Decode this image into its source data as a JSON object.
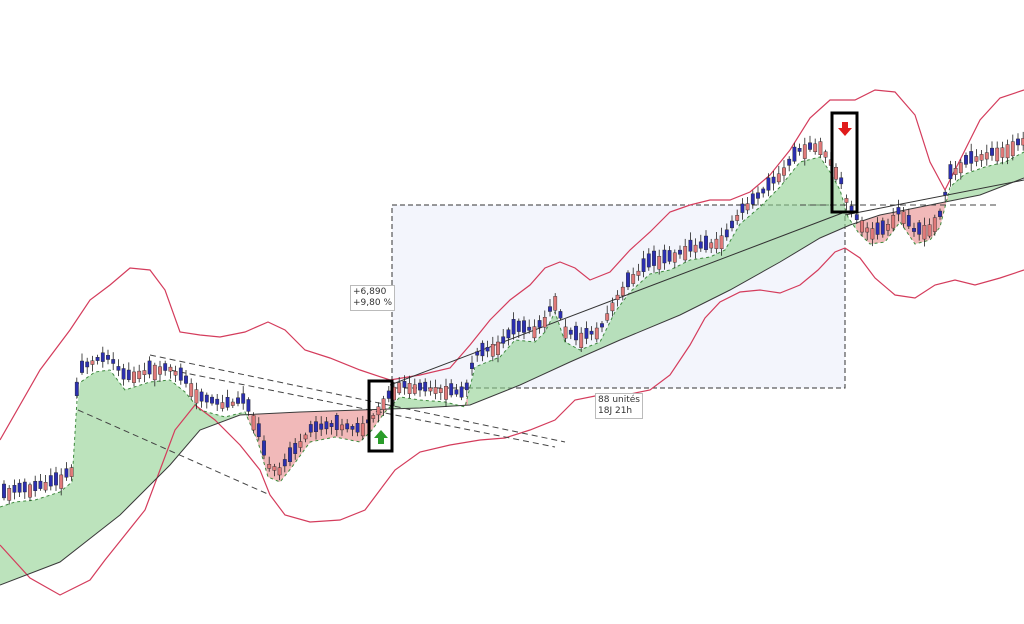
{
  "chart_data": {
    "type": "candlestick",
    "title": "",
    "xlabel": "",
    "ylabel": "",
    "grid": false,
    "measurement": {
      "change_value": "+6,890",
      "change_percent": "+9,80 %",
      "units": "88 unités",
      "duration": "18J 21h"
    },
    "signals": [
      {
        "type": "buy",
        "label": "buy signal (up arrow)",
        "color": "#2a9d2a"
      },
      {
        "type": "sell",
        "label": "sell signal (down arrow)",
        "color": "#e01b1b"
      }
    ],
    "indicators": [
      "bollinger-bands",
      "ichimoku-cloud",
      "moving-averages",
      "trend-lines"
    ],
    "colors": {
      "bull_candle": "#2b2fb0",
      "bear_candle": "#e07a7a",
      "band": "#d43c5c",
      "cloud_bull": "#8fd08f",
      "cloud_bear": "#e88a8a",
      "measure_box": "#eef1fb"
    }
  }
}
